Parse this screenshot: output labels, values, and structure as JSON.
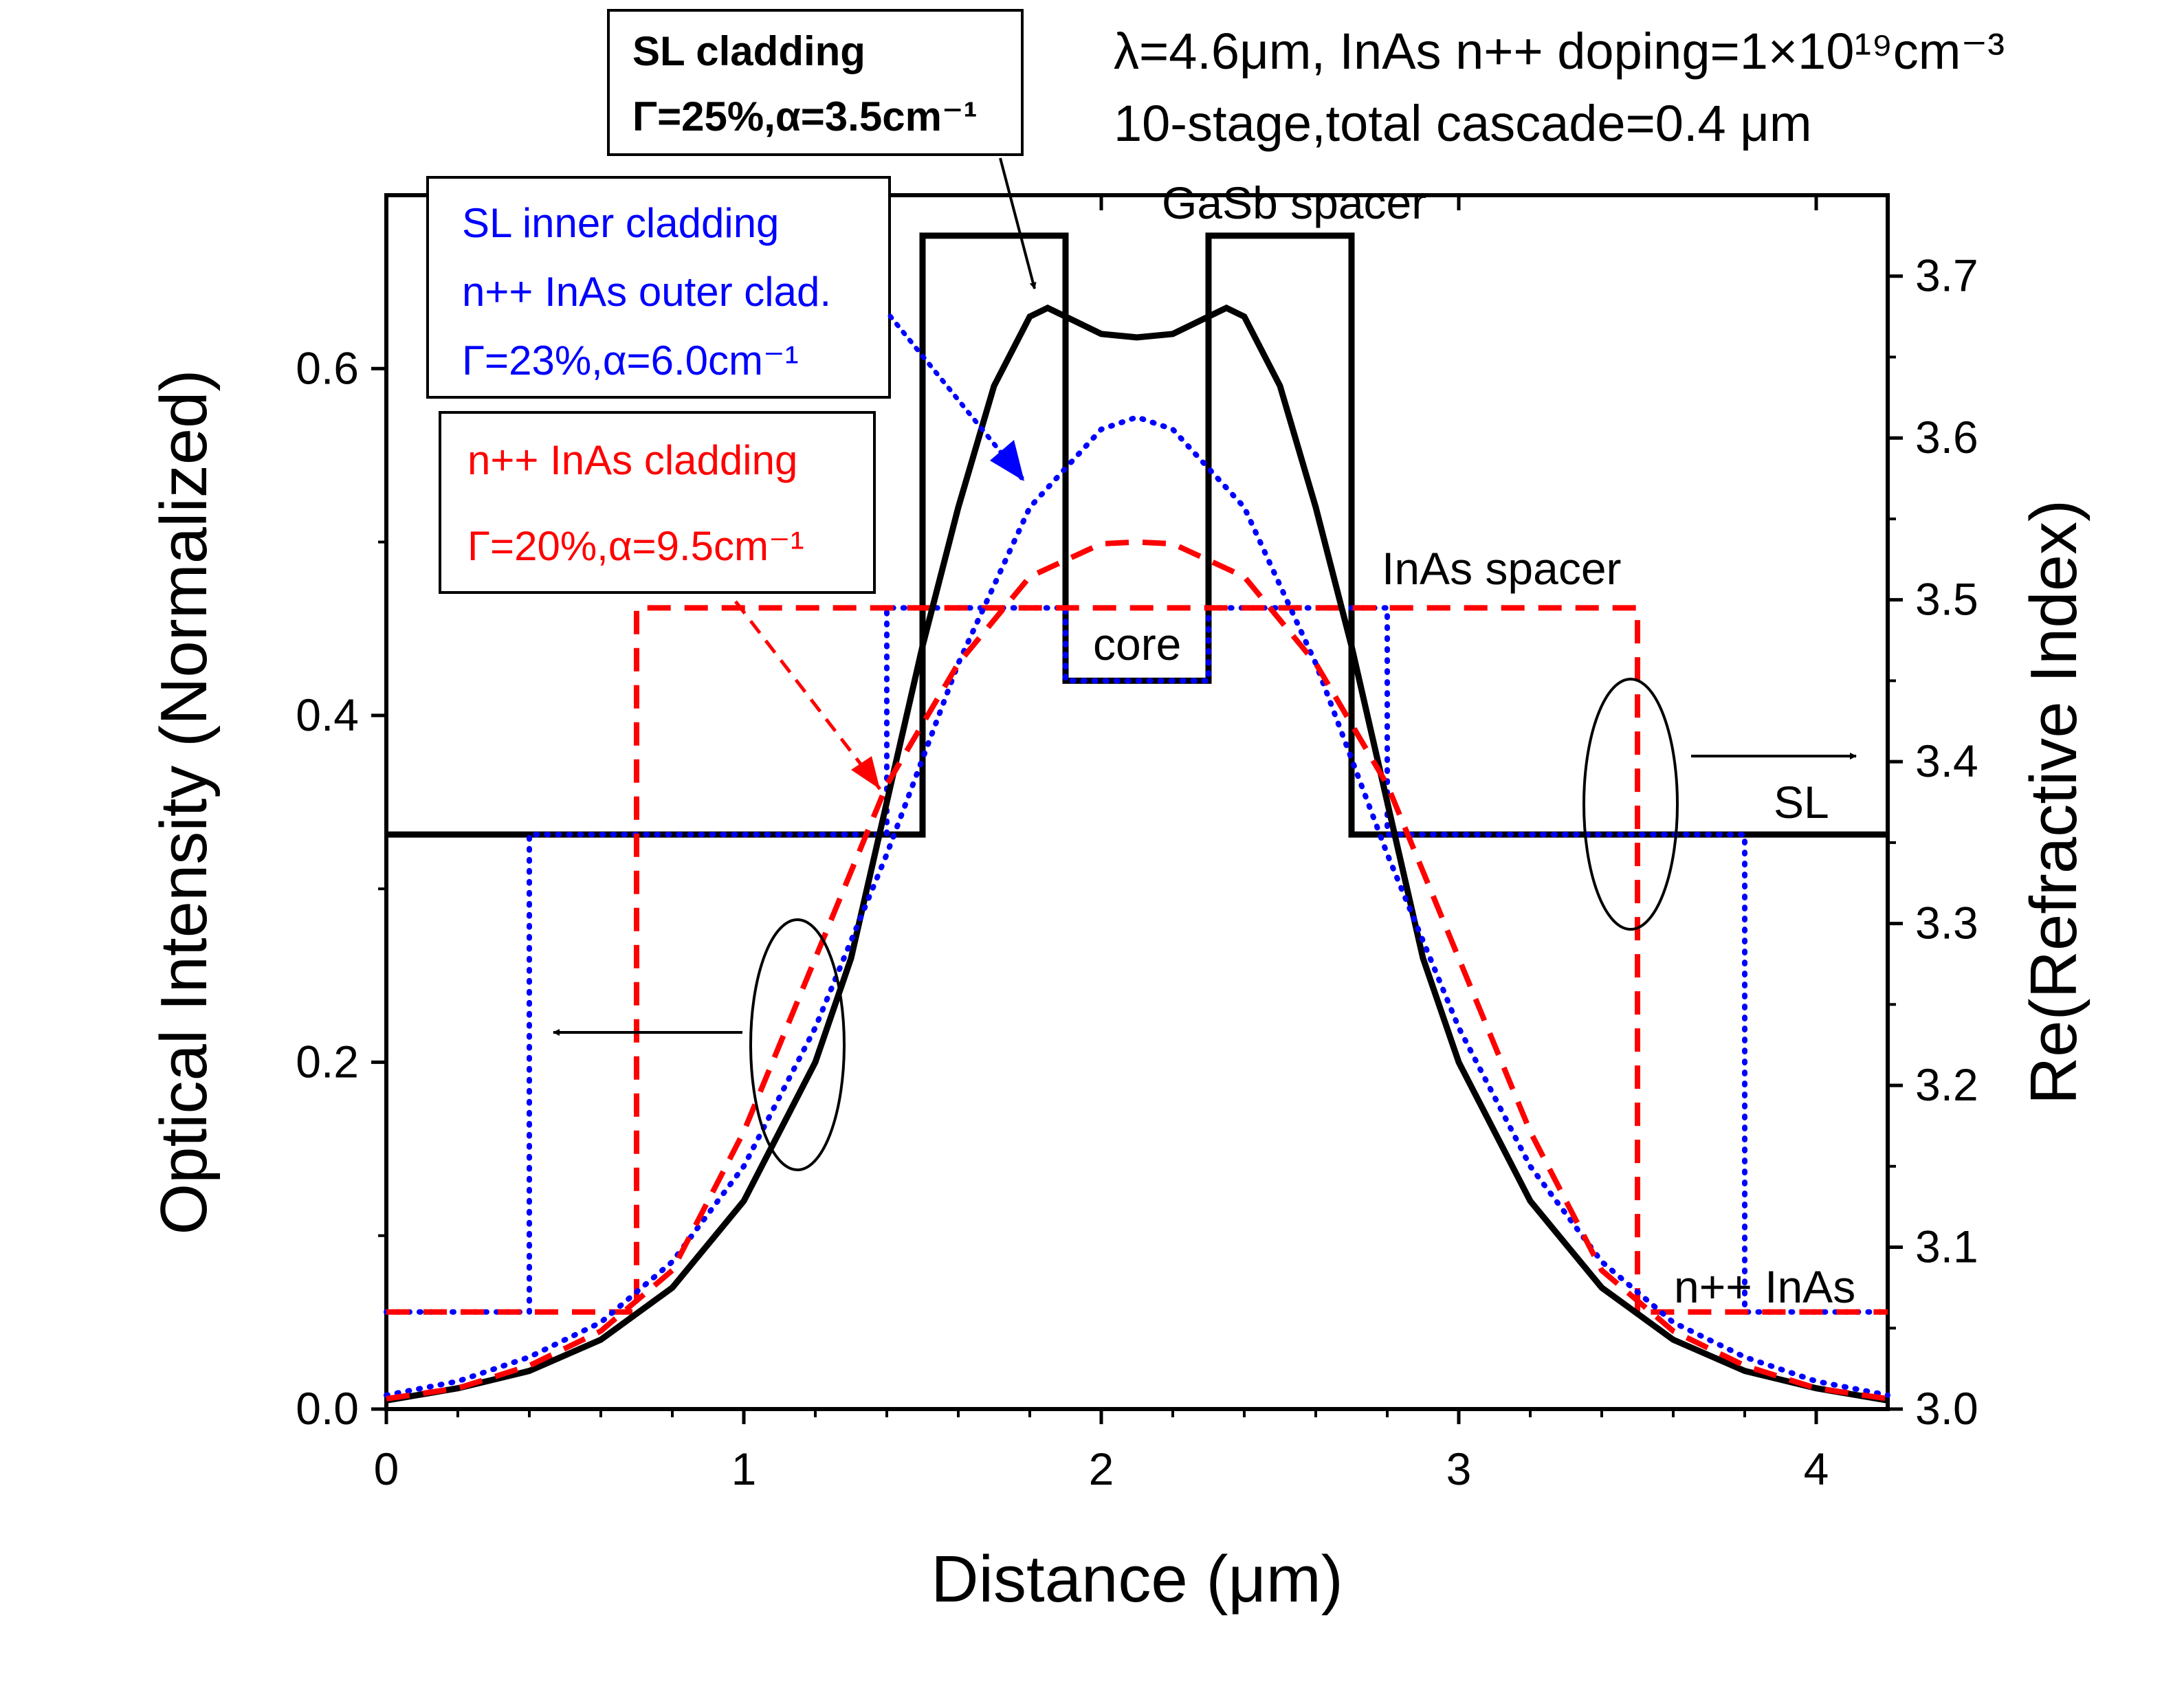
{
  "chart_data": {
    "type": "line",
    "xlabel": "Distance (μm)",
    "ylabel_left": "Optical Intensity (Normalized)",
    "ylabel_right": "Re(Refractive Index)",
    "xlim": [
      0,
      4.2
    ],
    "ylim_left": [
      0,
      0.7
    ],
    "ylim_right": [
      3.0,
      3.75
    ],
    "x_ticks": [
      0,
      1,
      2,
      3,
      4
    ],
    "y_left_ticks": [
      0.0,
      0.2,
      0.4,
      0.6
    ],
    "y_right_ticks": [
      3.0,
      3.1,
      3.2,
      3.3,
      3.4,
      3.5,
      3.6,
      3.7
    ],
    "grid": false,
    "colors": {
      "sl": "#000000",
      "hybrid": "#0000ff",
      "inas": "#ff0000"
    },
    "intensity_series": [
      {
        "color": "#000000",
        "style": "solid",
        "x": [
          0,
          0.2,
          0.4,
          0.6,
          0.8,
          1.0,
          1.2,
          1.3,
          1.4,
          1.5,
          1.6,
          1.7,
          1.8,
          1.85,
          1.9,
          2.0,
          2.1,
          2.2,
          2.3,
          2.35,
          2.4,
          2.5,
          2.6,
          2.7,
          2.8,
          2.9,
          3.0,
          3.2,
          3.4,
          3.6,
          3.8,
          4.0,
          4.2
        ],
        "y": [
          0.005,
          0.012,
          0.022,
          0.04,
          0.07,
          0.12,
          0.2,
          0.26,
          0.35,
          0.44,
          0.52,
          0.59,
          0.63,
          0.635,
          0.63,
          0.62,
          0.618,
          0.62,
          0.63,
          0.635,
          0.63,
          0.59,
          0.52,
          0.44,
          0.35,
          0.26,
          0.2,
          0.12,
          0.07,
          0.04,
          0.022,
          0.012,
          0.005
        ]
      },
      {
        "color": "#0000ff",
        "style": "dotted",
        "x": [
          0,
          0.2,
          0.4,
          0.6,
          0.8,
          1.0,
          1.2,
          1.4,
          1.6,
          1.8,
          2.0,
          2.1,
          2.2,
          2.4,
          2.6,
          2.8,
          3.0,
          3.2,
          3.4,
          3.6,
          3.8,
          4.0,
          4.2
        ],
        "y": [
          0.008,
          0.016,
          0.03,
          0.05,
          0.085,
          0.14,
          0.22,
          0.32,
          0.43,
          0.52,
          0.565,
          0.572,
          0.565,
          0.52,
          0.43,
          0.32,
          0.22,
          0.14,
          0.085,
          0.05,
          0.03,
          0.016,
          0.008
        ]
      },
      {
        "color": "#ff0000",
        "style": "dashed",
        "x": [
          0,
          0.2,
          0.4,
          0.6,
          0.8,
          1.0,
          1.2,
          1.4,
          1.6,
          1.8,
          2.0,
          2.1,
          2.2,
          2.4,
          2.6,
          2.8,
          3.0,
          3.2,
          3.4,
          3.6,
          3.8,
          4.0,
          4.2
        ],
        "y": [
          0.006,
          0.012,
          0.025,
          0.045,
          0.08,
          0.16,
          0.26,
          0.36,
          0.43,
          0.48,
          0.499,
          0.5,
          0.499,
          0.48,
          0.43,
          0.36,
          0.26,
          0.16,
          0.08,
          0.045,
          0.025,
          0.012,
          0.006
        ]
      }
    ],
    "index_series": [
      {
        "color": "#000000",
        "style": "solid",
        "x": [
          0,
          1.5,
          1.5,
          1.9,
          1.9,
          2.3,
          2.3,
          2.7,
          2.7,
          4.2
        ],
        "y": [
          3.355,
          3.355,
          3.725,
          3.725,
          3.45,
          3.45,
          3.725,
          3.725,
          3.355,
          3.355
        ]
      },
      {
        "color": "#0000ff",
        "style": "dotted",
        "x": [
          0,
          0.4,
          0.4,
          1.4,
          1.4,
          1.9,
          1.9,
          2.3,
          2.3,
          2.8,
          2.8,
          3.8,
          3.8,
          4.2
        ],
        "y": [
          3.06,
          3.06,
          3.355,
          3.355,
          3.495,
          3.495,
          3.45,
          3.45,
          3.495,
          3.495,
          3.355,
          3.355,
          3.06,
          3.06
        ]
      },
      {
        "color": "#ff0000",
        "style": "dashed",
        "x": [
          0,
          0.7,
          0.7,
          3.5,
          3.5,
          4.2
        ],
        "y": [
          3.06,
          3.06,
          3.495,
          3.495,
          3.06,
          3.06
        ]
      }
    ],
    "header_lines": [
      "λ=4.6μm, InAs n++ doping=1×10¹⁹cm⁻³",
      "10-stage,total cascade=0.4 μm"
    ],
    "annotations": {
      "gasb_spacer": "GaSb spacer",
      "inas_spacer": "InAs spacer",
      "core": "core",
      "sl": "SL",
      "npp_inas": "n++ InAs"
    },
    "legend_boxes": {
      "sl_cladding": {
        "line1": "SL cladding",
        "line2": "Γ=25%,α=3.5cm⁻¹"
      },
      "hybrid_cladding": {
        "line1": "SL inner cladding",
        "line2": "n++ InAs outer clad.",
        "line3": "Γ=23%,α=6.0cm⁻¹"
      },
      "inas_cladding": {
        "line1": "n++ InAs cladding",
        "line2": "Γ=20%,α=9.5cm⁻¹"
      }
    }
  }
}
